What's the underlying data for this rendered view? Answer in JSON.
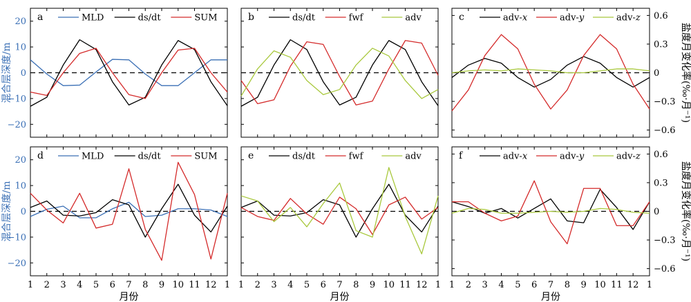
{
  "figure": {
    "xlabel": "月份",
    "ylabel_left": "混合层深度/m",
    "ylabel_right": "盐度月变化率(‰·月⁻¹)"
  },
  "colors": {
    "MLD": "#3a6fb5",
    "black": "#000000",
    "red": "#d42a2a",
    "green": "#a8c83c"
  },
  "chart_data": [
    {
      "id": "a",
      "type": "line",
      "letter": "a",
      "axis": "left",
      "x": [
        1,
        2,
        3,
        4,
        5,
        6,
        7,
        8,
        9,
        10,
        11,
        12,
        13
      ],
      "ylim": [
        -25,
        25
      ],
      "yticks": [
        -20,
        -10,
        0,
        10,
        20
      ],
      "series": [
        {
          "name": "MLD",
          "color": "#3a6fb5",
          "values": [
            5,
            -0.5,
            -5,
            -4.8,
            0.3,
            5.2,
            5,
            -0.5,
            -5,
            -5,
            0,
            5,
            5
          ]
        },
        {
          "name": "ds/dt",
          "color": "#000000",
          "values": [
            -13,
            -9.5,
            3,
            12.8,
            9,
            -3.5,
            -12.5,
            -9.5,
            3,
            12.5,
            9,
            -3.5,
            -12.8
          ]
        },
        {
          "name": "SUM",
          "color": "#d42a2a",
          "values": [
            -7.5,
            -8.8,
            0,
            7.5,
            9.5,
            0,
            -8.5,
            -10,
            0,
            8.8,
            9.5,
            0,
            -7.5
          ]
        }
      ]
    },
    {
      "id": "b",
      "type": "line",
      "letter": "b",
      "axis": "none",
      "x": [
        1,
        2,
        3,
        4,
        5,
        6,
        7,
        8,
        9,
        10,
        11,
        12,
        13
      ],
      "ylim": [
        -25,
        25
      ],
      "series": [
        {
          "name": "ds/dt",
          "color": "#000000",
          "values": [
            -13,
            -9.5,
            3,
            12.8,
            9,
            -3.5,
            -12.5,
            -9.5,
            3,
            12.5,
            9,
            -3.5,
            -12.8
          ]
        },
        {
          "name": "fwf",
          "color": "#d42a2a",
          "values": [
            -3,
            -12,
            -10.5,
            2.5,
            12,
            11,
            -1.5,
            -12.5,
            -11,
            1.5,
            12.5,
            11.5,
            -1
          ]
        },
        {
          "name": "adv",
          "color": "#a8c83c",
          "values": [
            -9,
            1.5,
            8.5,
            6,
            -3,
            -8.5,
            -6.5,
            3,
            9.5,
            6.5,
            -3,
            -10,
            -6.5
          ]
        }
      ]
    },
    {
      "id": "c",
      "type": "line",
      "letter": "c",
      "axis": "right",
      "x": [
        1,
        2,
        3,
        4,
        5,
        6,
        7,
        8,
        9,
        10,
        11,
        12,
        13
      ],
      "ylim": [
        -0.675,
        0.675
      ],
      "yticks": [
        -0.6,
        -0.3,
        0,
        0.3,
        0.6
      ],
      "ytick_labels": [
        "−0.6",
        "−0.3",
        "0",
        "0.3",
        "0.6"
      ],
      "series": [
        {
          "name": "adv-x",
          "color": "#000000",
          "values": [
            -0.05,
            0.08,
            0.15,
            0.1,
            -0.05,
            -0.15,
            -0.07,
            0.08,
            0.17,
            0.1,
            -0.05,
            -0.15,
            -0.05
          ]
        },
        {
          "name": "adv-y",
          "color": "#d42a2a",
          "values": [
            -0.4,
            -0.18,
            0.18,
            0.4,
            0.25,
            -0.12,
            -0.38,
            -0.18,
            0.18,
            0.4,
            0.25,
            -0.12,
            -0.38
          ]
        },
        {
          "name": "adv-z",
          "color": "#a8c83c",
          "values": [
            0,
            0.02,
            0.03,
            0.02,
            0.04,
            0.03,
            0.02,
            0,
            0,
            0.02,
            0.04,
            0.04,
            0.02
          ]
        }
      ]
    },
    {
      "id": "d",
      "type": "line",
      "letter": "d",
      "axis": "left",
      "x": [
        1,
        2,
        3,
        4,
        5,
        6,
        7,
        8,
        9,
        10,
        11,
        12,
        13
      ],
      "ylim": [
        -25,
        25
      ],
      "yticks": [
        -20,
        -10,
        0,
        10,
        20
      ],
      "series": [
        {
          "name": "MLD",
          "color": "#3a6fb5",
          "values": [
            -2,
            0.8,
            2,
            -2.5,
            -2.5,
            1,
            3.5,
            -2,
            -1.5,
            1,
            1,
            0.5,
            -2
          ]
        },
        {
          "name": "ds/dt",
          "color": "#000000",
          "values": [
            1.5,
            4,
            -1.5,
            -1.8,
            -0.5,
            4.5,
            2.5,
            -10,
            1,
            10.5,
            -1.5,
            -8,
            2
          ]
        },
        {
          "name": "SUM",
          "color": "#d42a2a",
          "values": [
            7,
            0.5,
            -4.5,
            7,
            -6.5,
            -5,
            16.5,
            -7,
            -19,
            19,
            6.5,
            -18.5,
            7
          ]
        }
      ]
    },
    {
      "id": "e",
      "type": "line",
      "letter": "e",
      "axis": "none",
      "x": [
        1,
        2,
        3,
        4,
        5,
        6,
        7,
        8,
        9,
        10,
        11,
        12,
        13
      ],
      "ylim": [
        -25,
        25
      ],
      "series": [
        {
          "name": "ds/dt",
          "color": "#000000",
          "values": [
            1.5,
            4,
            -1.5,
            -1.8,
            -0.5,
            4.5,
            2.5,
            -10,
            1,
            10.5,
            -1.5,
            -8,
            2
          ]
        },
        {
          "name": "fwf",
          "color": "#d42a2a",
          "values": [
            1.5,
            -2,
            -3.5,
            5,
            -1,
            -5,
            5.5,
            1,
            -9,
            2.5,
            5.5,
            -3,
            1.5
          ]
        },
        {
          "name": "adv",
          "color": "#a8c83c",
          "values": [
            6,
            4,
            -4,
            1.5,
            -6,
            3,
            11,
            -7.5,
            -10,
            17,
            -2,
            -16.5,
            6
          ]
        }
      ]
    },
    {
      "id": "f",
      "type": "line",
      "letter": "f",
      "axis": "right",
      "x": [
        1,
        2,
        3,
        4,
        5,
        6,
        7,
        8,
        9,
        10,
        11,
        12,
        13
      ],
      "ylim": [
        -0.675,
        0.675
      ],
      "yticks": [
        -0.6,
        -0.3,
        0,
        0.3,
        0.6
      ],
      "ytick_labels": [
        "−0.6",
        "−0.3",
        "0",
        "0.3",
        "0.6"
      ],
      "series": [
        {
          "name": "adv-x",
          "color": "#000000",
          "values": [
            0.1,
            0.05,
            -0.02,
            0.03,
            -0.07,
            0.03,
            0.13,
            -0.1,
            -0.12,
            0.23,
            0.04,
            -0.19,
            0.1
          ]
        },
        {
          "name": "adv-y",
          "color": "#d42a2a",
          "values": [
            0.1,
            0.1,
            -0.02,
            -0.1,
            -0.05,
            0.32,
            -0.11,
            -0.34,
            0.24,
            0.24,
            -0.15,
            -0.15,
            0.1
          ]
        },
        {
          "name": "adv-z",
          "color": "#a8c83c",
          "values": [
            -0.02,
            0.03,
            0.02,
            -0.02,
            -0.02,
            -0.01,
            0,
            -0.01,
            0,
            0.03,
            0.02,
            -0.01,
            -0.02
          ]
        }
      ]
    }
  ]
}
